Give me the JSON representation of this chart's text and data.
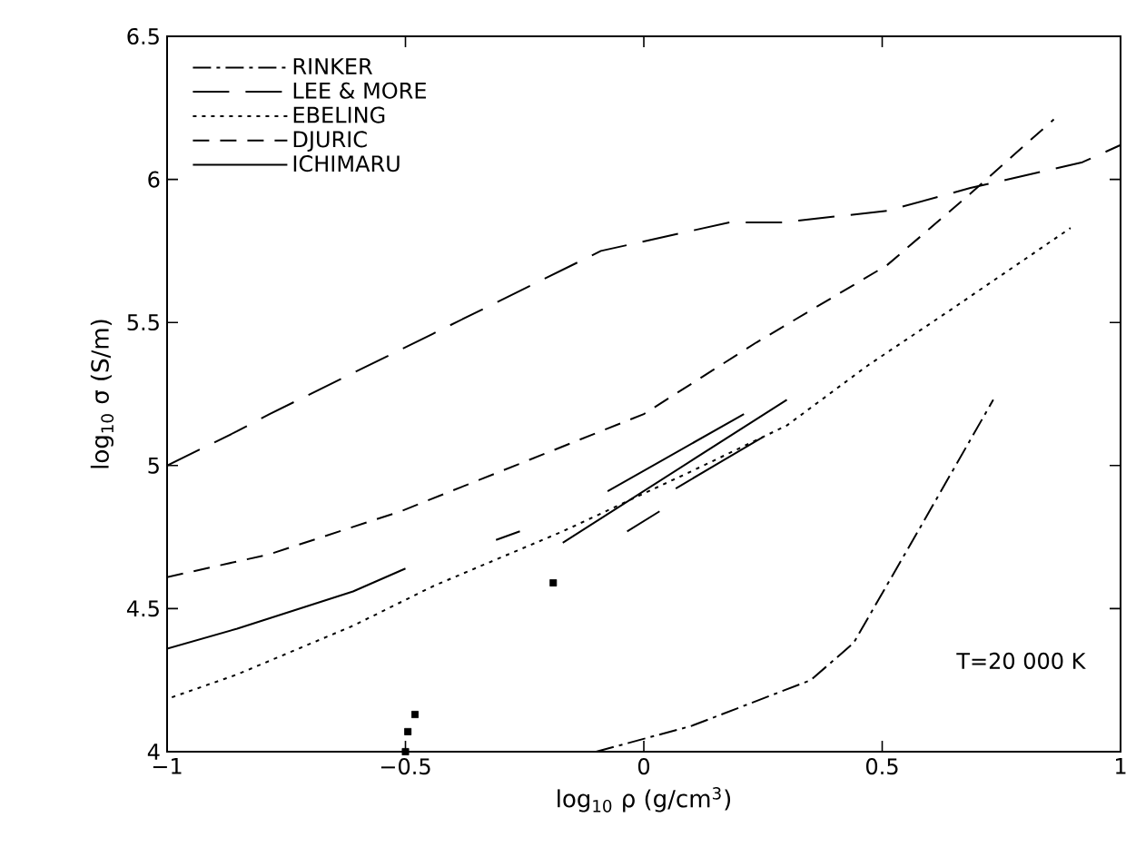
{
  "chart_data": {
    "type": "line",
    "xlabel": "log$_{10}$ ρ (g/cm$^{3}$)",
    "ylabel": "log$_{10}$ σ (S/m)",
    "xlim": [
      -1,
      1
    ],
    "ylim": [
      4,
      6.5
    ],
    "xticks": [
      {
        "value": -1,
        "label": "−1"
      },
      {
        "value": -0.5,
        "label": "−0.5"
      },
      0,
      0.5,
      1
    ],
    "yticks": [
      4,
      4.5,
      5,
      5.5,
      6,
      6.5
    ],
    "legend": "top left",
    "annotations": [
      "T=20 000 K"
    ],
    "series": [
      {
        "name": "RINKER",
        "color": "#000000",
        "line_style": "dashdot",
        "x": [
          -0.1,
          0.1,
          0.35,
          0.44,
          0.575,
          0.733
        ],
        "values": [
          4.0,
          4.09,
          4.25,
          4.38,
          4.77,
          5.23
        ]
      },
      {
        "name": "LEE & MORE",
        "color": "#000000",
        "line_style": "long dashed",
        "x": [
          -1,
          -0.853,
          -0.785,
          -0.443,
          -0.09,
          0.18,
          0.29,
          0.51,
          0.685,
          0.92,
          1.0
        ],
        "values": [
          5.0,
          5.12,
          5.18,
          5.46,
          5.75,
          5.85,
          5.85,
          5.89,
          5.97,
          6.06,
          6.12
        ]
      },
      {
        "name": "EBELING",
        "color": "#000000",
        "line_style": "dotted",
        "x": [
          -0.99,
          -0.853,
          -0.61,
          -0.44,
          -0.17,
          0.1,
          0.3,
          0.47,
          0.64,
          0.895
        ],
        "values": [
          4.19,
          4.27,
          4.44,
          4.58,
          4.77,
          4.98,
          5.14,
          5.35,
          5.54,
          5.83
        ]
      },
      {
        "name": "DJURIC",
        "color": "#000000",
        "line_style": "dashed",
        "x": [
          -1,
          -0.785,
          -0.51,
          -0.24,
          0.0,
          0.236,
          0.51,
          0.685,
          0.86
        ],
        "values": [
          4.61,
          4.69,
          4.84,
          5.02,
          5.18,
          5.43,
          5.7,
          5.95,
          6.21
        ]
      },
      {
        "name": "ICHIMARU",
        "color": "#000000",
        "line_style": "solid",
        "x": [
          -1,
          -0.853,
          -0.61,
          -0.5
        ],
        "values": [
          4.36,
          4.43,
          4.56,
          4.64
        ]
      },
      {
        "type": "line",
        "color": "#000000",
        "line_style": "solid",
        "x": [
          -0.076,
          0.21,
          null,
          -0.17,
          0.3,
          null,
          0.067,
          0.25,
          null,
          -0.035,
          0.033,
          null,
          -0.31,
          -0.26
        ],
        "values": [
          4.91,
          5.18,
          null,
          4.73,
          5.23,
          null,
          4.92,
          5.1,
          null,
          4.77,
          4.84,
          null,
          4.74,
          4.77
        ]
      },
      {
        "type": "scatter",
        "color": "#000000",
        "marker": "square",
        "x": [
          -0.5,
          -0.495,
          -0.48,
          -0.19
        ],
        "values": [
          4.0,
          4.07,
          4.13,
          4.59
        ]
      }
    ]
  }
}
